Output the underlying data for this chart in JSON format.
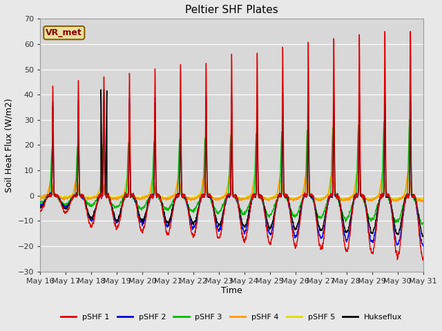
{
  "title": "Peltier SHF Plates",
  "xlabel": "Time",
  "ylabel": "Soil Heat Flux (W/m2)",
  "ylim": [
    -30,
    70
  ],
  "yticks": [
    -30,
    -20,
    -10,
    0,
    10,
    20,
    30,
    40,
    50,
    60,
    70
  ],
  "annotation_text": "VR_met",
  "annotation_bg": "#e8e0a0",
  "annotation_border": "#8b6000",
  "series_colors": {
    "pSHF 1": "#dd0000",
    "pSHF 2": "#0000dd",
    "pSHF 3": "#00bb00",
    "pSHF 4": "#ff9900",
    "pSHF 5": "#dddd00",
    "Hukseflux": "#000000"
  },
  "n_points": 3000,
  "days": 15,
  "line_width": 1.0,
  "fig_facecolor": "#e8e8e8",
  "ax_facecolor": "#d8d8d8",
  "grid_color": "#ffffff"
}
